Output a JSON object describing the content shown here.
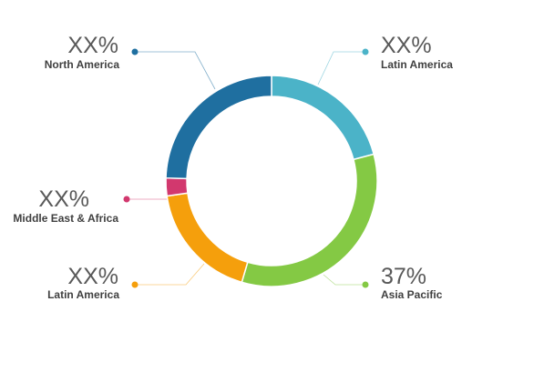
{
  "chart_data": {
    "type": "pie",
    "donut": true,
    "slices": [
      {
        "label": "Latin America",
        "value_label": "XX%",
        "value": 23,
        "color": "#4bb3c8"
      },
      {
        "label": "Asia Pacific",
        "value_label": "37%",
        "value": 37,
        "color": "#84c944"
      },
      {
        "label": "Latin America",
        "value_label": "XX%",
        "value": 20,
        "color": "#f59f0c"
      },
      {
        "label": "Middle East & Africa",
        "value_label": "XX%",
        "value": 3,
        "color": "#d2386e"
      },
      {
        "label": "North America",
        "value_label": "XX%",
        "value": 27,
        "color": "#1f6fa0"
      }
    ]
  }
}
